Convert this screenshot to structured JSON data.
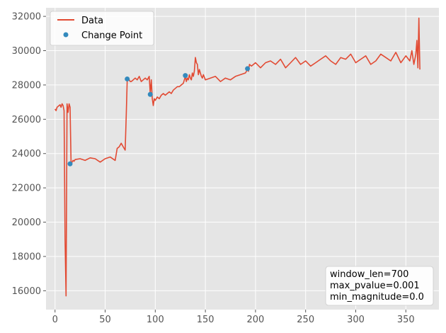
{
  "chart_data": {
    "type": "line",
    "title": "",
    "xlabel": "",
    "ylabel": "",
    "xlim": [
      -9,
      383
    ],
    "ylim": [
      14900,
      32500
    ],
    "x_ticks": [
      0,
      50,
      100,
      150,
      200,
      250,
      300,
      350
    ],
    "y_ticks": [
      16000,
      18000,
      20000,
      22000,
      24000,
      26000,
      28000,
      30000,
      32000
    ],
    "grid": true,
    "legend_position": "top-left",
    "colors": {
      "line": "#e24a33",
      "points": "#348abd",
      "background": "#e5e5e5",
      "grid": "#ffffff"
    },
    "series": [
      {
        "name": "Data",
        "style": "line",
        "x": [
          0,
          1,
          2,
          3,
          4,
          5,
          6,
          7,
          8,
          9,
          10,
          11,
          12,
          13,
          14,
          15,
          16,
          17,
          18,
          19,
          20,
          25,
          30,
          35,
          40,
          45,
          50,
          55,
          60,
          62,
          64,
          66,
          68,
          70,
          71,
          72,
          73,
          74,
          75,
          76,
          78,
          80,
          82,
          84,
          86,
          88,
          90,
          92,
          94,
          95,
          96,
          97,
          98,
          99,
          100,
          102,
          104,
          106,
          108,
          110,
          112,
          114,
          116,
          118,
          120,
          122,
          124,
          126,
          128,
          130,
          131,
          132,
          133,
          134,
          135,
          136,
          137,
          138,
          139,
          140,
          141,
          142,
          143,
          144,
          145,
          146,
          147,
          148,
          150,
          155,
          160,
          165,
          170,
          175,
          180,
          185,
          190,
          192,
          193,
          194,
          196,
          198,
          200,
          205,
          210,
          215,
          220,
          225,
          230,
          235,
          240,
          245,
          250,
          255,
          260,
          265,
          270,
          275,
          280,
          285,
          290,
          295,
          300,
          305,
          310,
          315,
          320,
          325,
          330,
          335,
          340,
          345,
          350,
          354,
          356,
          358,
          360,
          361,
          362,
          363,
          364
        ],
        "y": [
          26600,
          26500,
          26700,
          26750,
          26800,
          26850,
          26700,
          26900,
          26800,
          26500,
          19000,
          15700,
          26900,
          26400,
          26900,
          26700,
          23400,
          23500,
          23600,
          23550,
          23650,
          23700,
          23600,
          23750,
          23700,
          23500,
          23700,
          23800,
          23600,
          24300,
          24400,
          24600,
          24400,
          24200,
          26200,
          28300,
          28350,
          28300,
          28200,
          28200,
          28300,
          28400,
          28300,
          28500,
          28200,
          28300,
          28400,
          28300,
          28500,
          27500,
          28300,
          27200,
          26800,
          27200,
          27100,
          27300,
          27200,
          27400,
          27500,
          27400,
          27500,
          27600,
          27500,
          27700,
          27800,
          27900,
          27900,
          28000,
          28100,
          28500,
          28200,
          28400,
          28300,
          28600,
          28400,
          28300,
          28700,
          28500,
          28800,
          29600,
          29300,
          29200,
          28600,
          28900,
          28700,
          28500,
          28400,
          28600,
          28300,
          28400,
          28500,
          28200,
          28400,
          28300,
          28500,
          28600,
          28700,
          28900,
          28800,
          29200,
          29100,
          29200,
          29300,
          29000,
          29300,
          29400,
          29200,
          29500,
          29000,
          29300,
          29600,
          29200,
          29400,
          29100,
          29300,
          29500,
          29700,
          29400,
          29200,
          29600,
          29500,
          29800,
          29300,
          29500,
          29700,
          29200,
          29400,
          29800,
          29600,
          29400,
          29900,
          29300,
          29700,
          29400,
          30000,
          29200,
          29800,
          30600,
          29000,
          31900,
          28900
        ],
        "color": "#e24a33"
      },
      {
        "name": "Change Point",
        "style": "scatter",
        "x": [
          15,
          72,
          95,
          130,
          192
        ],
        "y": [
          23400,
          28350,
          27450,
          28550,
          28950
        ],
        "color": "#348abd"
      }
    ],
    "annotation": [
      "window_len=700",
      "max_pvalue=0.001",
      "min_magnitude=0.0"
    ]
  }
}
